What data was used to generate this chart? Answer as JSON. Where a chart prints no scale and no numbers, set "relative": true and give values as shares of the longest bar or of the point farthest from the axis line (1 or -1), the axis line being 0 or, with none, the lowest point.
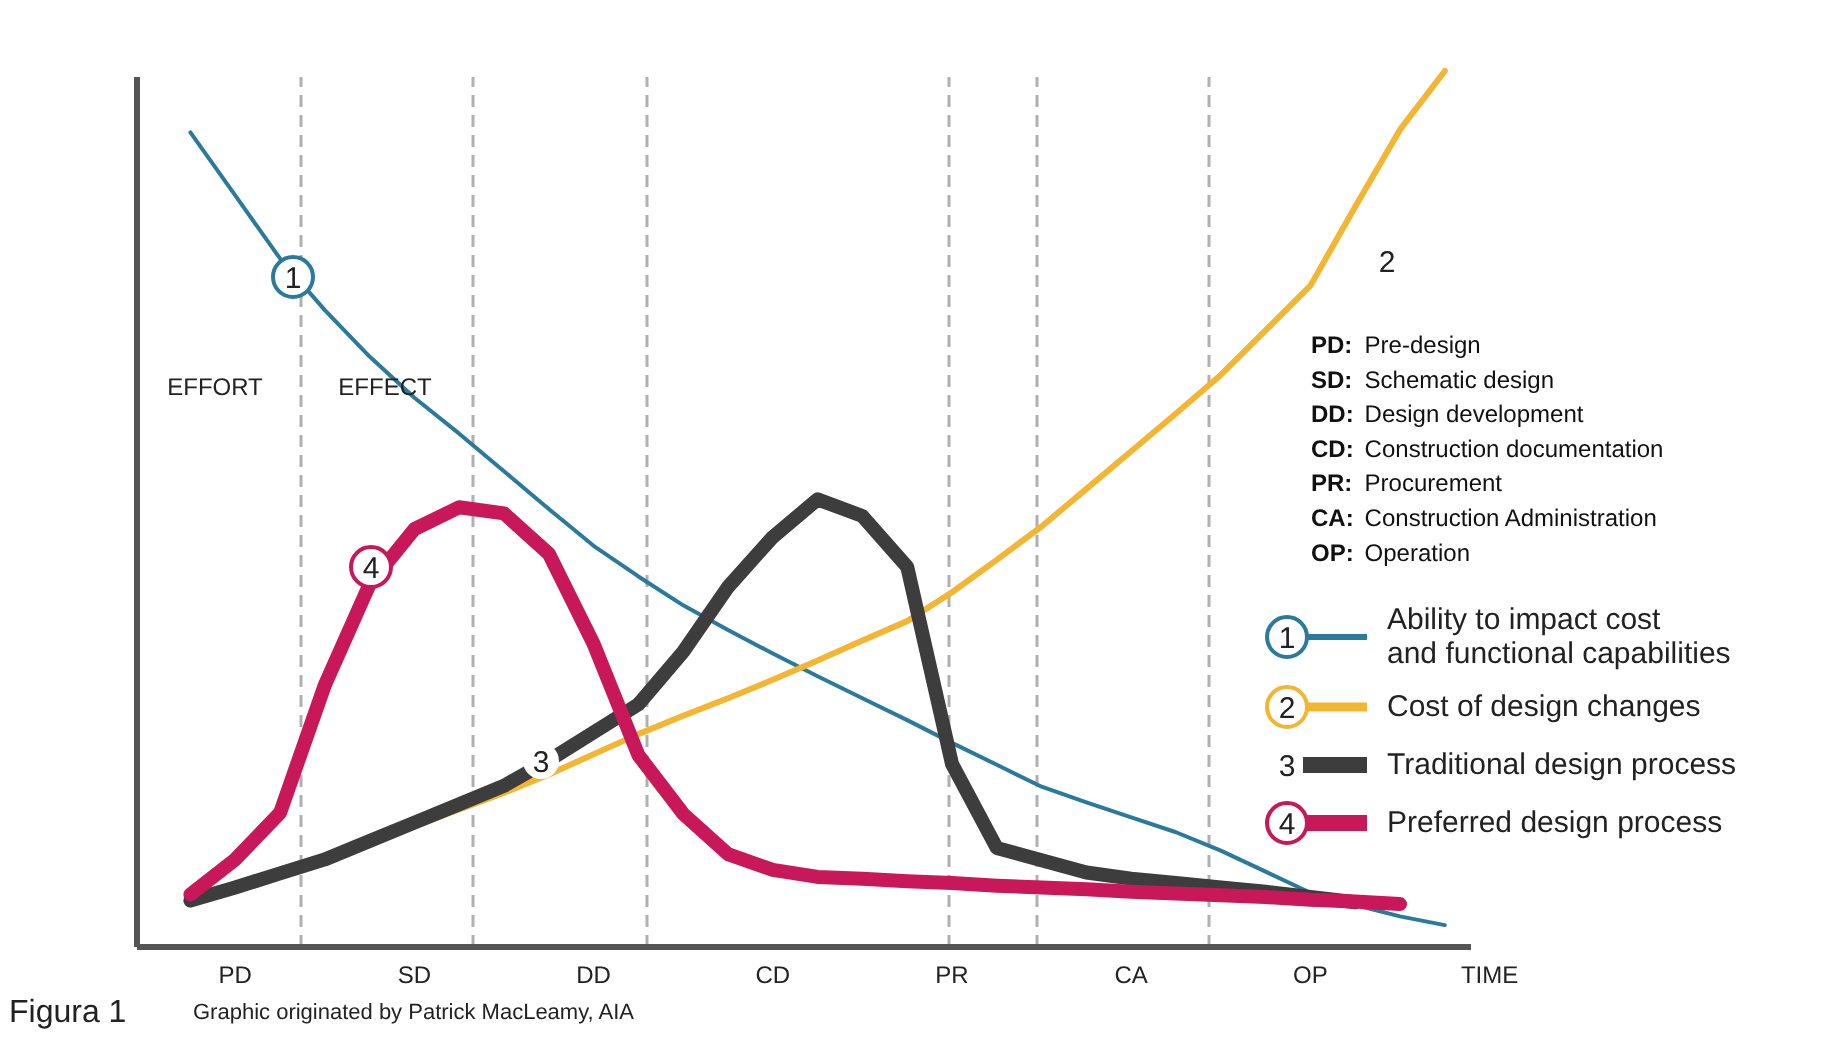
{
  "chart_data": {
    "type": "line",
    "relative": true,
    "categories": [
      null,
      null,
      "PD",
      null,
      null,
      null,
      "SD",
      null,
      null,
      null,
      "DD",
      null,
      null,
      null,
      "CD",
      null,
      null,
      null,
      "PR",
      null,
      null,
      null,
      "CA",
      null,
      null,
      null,
      "OP",
      null,
      null,
      null,
      "TIME"
    ],
    "grid": "x",
    "legend": "right",
    "series": [
      {
        "name": "Ability to impact cost and functional capabilities",
        "color": "#2b7a9b",
        "values": [
          null,
          0.93,
          0.858,
          0.786,
          0.727,
          0.674,
          0.627,
          0.586,
          0.543,
          0.5,
          0.458,
          0.423,
          0.39,
          0.362,
          0.335,
          0.309,
          0.284,
          0.259,
          0.233,
          0.208,
          0.183,
          0.165,
          0.148,
          0.131,
          0.11,
          0.086,
          0.062,
          0.048,
          0.035,
          0.025,
          null
        ]
      },
      {
        "name": "Cost of design changes",
        "color": "#f2b632",
        "values": [
          null,
          null,
          null,
          null,
          null,
          null,
          0.138,
          0.157,
          0.176,
          0.197,
          0.22,
          0.243,
          0.264,
          0.284,
          0.305,
          0.327,
          0.35,
          0.372,
          0.405,
          0.442,
          0.48,
          0.523,
          0.566,
          0.609,
          0.653,
          0.704,
          0.755,
          0.845,
          0.933,
          1.0,
          null
        ]
      },
      {
        "name": "Traditional design process",
        "color": "#3d3d3d",
        "values": [
          null,
          0.053,
          0.068,
          0.084,
          0.1,
          0.121,
          0.142,
          0.163,
          0.184,
          0.213,
          0.245,
          0.277,
          0.337,
          0.411,
          0.468,
          0.511,
          0.492,
          0.434,
          0.209,
          0.113,
          0.099,
          0.085,
          0.078,
          0.073,
          0.068,
          0.063,
          0.057,
          0.051,
          null,
          null,
          null
        ]
      },
      {
        "name": "Preferred design process",
        "color": "#c8185a",
        "values": [
          null,
          0.06,
          0.1,
          0.153,
          0.299,
          0.414,
          0.477,
          0.502,
          0.495,
          0.449,
          0.346,
          0.219,
          0.152,
          0.106,
          0.088,
          0.08,
          0.078,
          0.075,
          0.073,
          0.07,
          0.068,
          0.066,
          0.063,
          0.061,
          0.059,
          0.057,
          0.054,
          0.052,
          0.049,
          null,
          null
        ]
      }
    ],
    "annotations": [
      "1",
      "2",
      "3",
      "4",
      "EFFORT",
      "EFFECT",
      "PD: Pre-design",
      "SD: Schematic design",
      "DD: Design development",
      "CD: Construction documentation",
      "PR: Procurement",
      "CA: Construction Administration",
      "OP: Operation",
      "Figura 1",
      "Graphic originated by Patrick MacLeamy, AIA"
    ]
  }
}
